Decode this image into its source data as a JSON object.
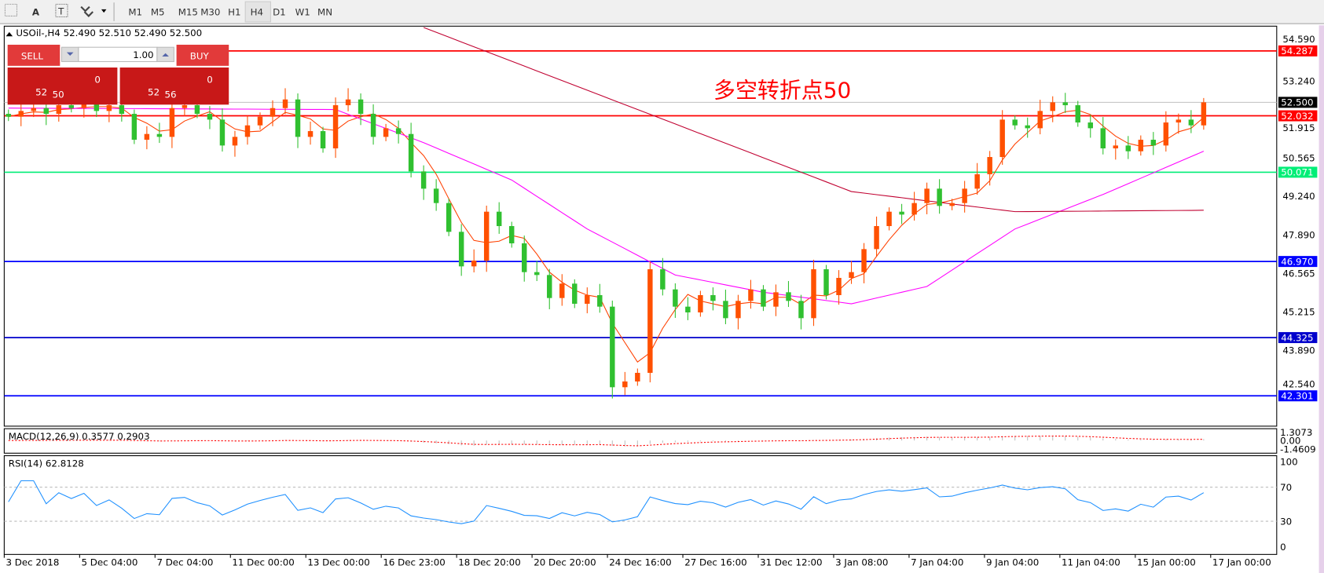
{
  "toolbar": {
    "tools": [
      {
        "icon": "fibonacci-icon"
      },
      {
        "icon": "text-icon",
        "label": "A"
      },
      {
        "icon": "text-label-icon",
        "label": "T"
      },
      {
        "icon": "arrows-icon"
      }
    ],
    "timeframes": [
      "M1",
      "M5",
      "M15",
      "M30",
      "H1",
      "H4",
      "D1",
      "W1",
      "MN"
    ],
    "active_timeframe": "H4"
  },
  "chart": {
    "header": "USOil-,H4  52.490 52.510 52.490 52.500",
    "annotation": "多空转折点50",
    "annotation_color": "#ff0000",
    "trade_panel": {
      "sell_label": "SELL",
      "buy_label": "BUY",
      "volume": "1.00",
      "sell_big": "50",
      "sell_small": "52",
      "sell_sup": "0",
      "buy_big": "56",
      "buy_small": "52",
      "buy_sup": "0"
    }
  },
  "chart_data": [
    {
      "type": "candlestick",
      "symbol": "USOil-",
      "timeframe": "H4",
      "ylim": [
        42.0,
        55.0
      ],
      "y_ticks": [
        "54.590",
        "53.240",
        "51.915",
        "50.565",
        "49.240",
        "47.890",
        "46.565",
        "45.215",
        "43.890",
        "42.540"
      ],
      "x_ticks": [
        "3 Dec 2018",
        "5 Dec 04:00",
        "7 Dec 04:00",
        "11 Dec 00:00",
        "13 Dec 00:00",
        "16 Dec 23:00",
        "18 Dec 20:00",
        "20 Dec 20:00",
        "24 Dec 16:00",
        "27 Dec 16:00",
        "31 Dec 12:00",
        "3 Jan 08:00",
        "7 Jan 04:00",
        "9 Jan 04:00",
        "11 Jan 04:00",
        "15 Jan 00:00",
        "17 Jan 00:00"
      ],
      "colors": {
        "up": "#ff5000",
        "down": "#30c030"
      },
      "closes": [
        52.0,
        52.2,
        52.3,
        52.1,
        52.4,
        52.3,
        52.5,
        52.2,
        52.4,
        52.1,
        51.2,
        51.4,
        51.3,
        52.3,
        52.4,
        52.1,
        51.9,
        51.0,
        51.3,
        51.7,
        52.0,
        52.3,
        52.6,
        51.3,
        51.5,
        50.9,
        52.4,
        52.6,
        52.1,
        51.3,
        51.6,
        51.4,
        50.1,
        49.5,
        49.0,
        48.0,
        46.8,
        47.0,
        48.7,
        48.2,
        47.6,
        46.6,
        46.5,
        45.7,
        46.2,
        45.5,
        45.8,
        45.4,
        42.6,
        42.8,
        43.1,
        46.7,
        46.0,
        45.4,
        45.2,
        45.8,
        45.6,
        45.0,
        45.6,
        46.0,
        45.4,
        45.9,
        45.6,
        45.0,
        46.7,
        45.8,
        46.4,
        46.6,
        47.4,
        48.2,
        48.7,
        48.6,
        49.0,
        49.5,
        48.9,
        49.0,
        49.5,
        50.0,
        50.6,
        51.9,
        51.7,
        51.6,
        52.2,
        52.5,
        52.4,
        51.8,
        51.6,
        50.9,
        51.0,
        50.8,
        51.2,
        51.0,
        51.8,
        51.9,
        51.7,
        52.5
      ],
      "first_open": 52.1,
      "moving_averages": [
        {
          "color": "#ff4000",
          "computed_period": 4
        },
        {
          "color": "#ff00ff",
          "points": [
            [
              0,
              52.3
            ],
            [
              26,
              52.25
            ],
            [
              33,
              51.1
            ],
            [
              40,
              49.8
            ],
            [
              46,
              48.1
            ],
            [
              53,
              46.5
            ],
            [
              60,
              45.9
            ],
            [
              67,
              45.5
            ],
            [
              73,
              46.1
            ],
            [
              80,
              48.1
            ],
            [
              87,
              49.3
            ],
            [
              95,
              50.8
            ]
          ]
        },
        {
          "color": "#c00030",
          "points": [
            [
              33,
              55.1
            ],
            [
              67,
              49.4
            ],
            [
              80,
              48.7
            ],
            [
              95,
              48.75
            ]
          ]
        }
      ],
      "levels": [
        {
          "value": 54.287,
          "label": "54.287",
          "color": "#ff0000"
        },
        {
          "value": 52.032,
          "label": "52.032",
          "color": "#ff0000"
        },
        {
          "value": 50.071,
          "label": "50.071",
          "color": "#00ee77"
        },
        {
          "value": 46.97,
          "label": "46.970",
          "color": "#0000ff"
        },
        {
          "value": 44.325,
          "label": "44.325",
          "color": "#0000cc"
        },
        {
          "value": 42.301,
          "label": "42.301",
          "color": "#0000ff"
        }
      ],
      "current_price": {
        "value": 52.5,
        "label": "52.500"
      }
    },
    {
      "type": "macd",
      "title": "MACD(12,26,9) 0.3577 0.2903",
      "y_ticks": [
        "1.3073",
        "0.00",
        "-1.4609"
      ],
      "ylim": [
        -1.4609,
        1.3073
      ]
    },
    {
      "type": "rsi",
      "title": "RSI(14) 62.8128",
      "y_ticks": [
        "100",
        "70",
        "30",
        "0"
      ],
      "ylim": [
        0,
        100
      ],
      "levels": [
        70,
        30
      ],
      "color": "#1e90ff"
    }
  ]
}
